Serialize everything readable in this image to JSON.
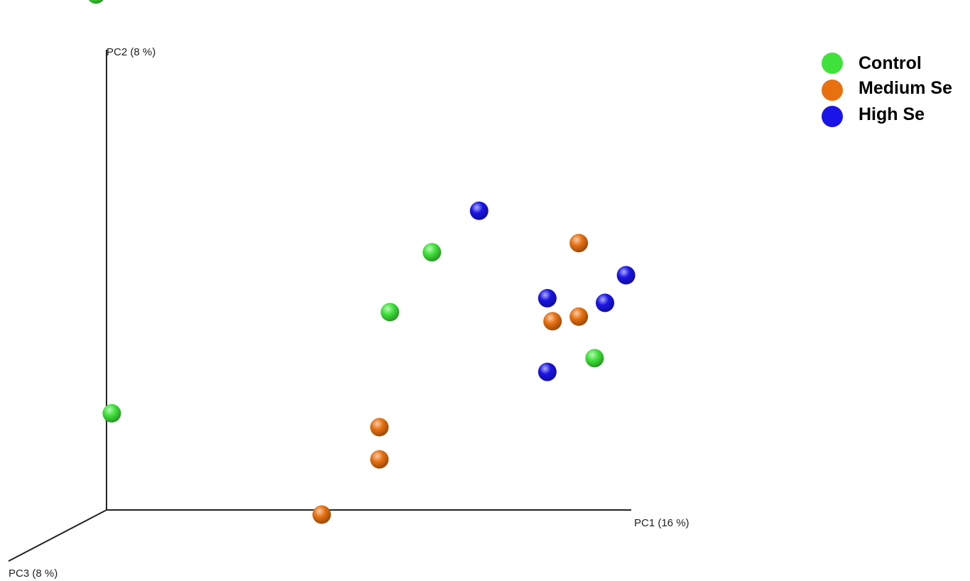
{
  "chart_data": {
    "type": "scatter",
    "projection": "3d",
    "axes": {
      "x": {
        "label": "PC1 (16 %)"
      },
      "y": {
        "label": "PC2 (8 %)"
      },
      "z": {
        "label": "PC3 (8 %)"
      }
    },
    "grid": false,
    "legend": {
      "placement": "top-right"
    },
    "series": [
      {
        "name": "Control",
        "color": "#3fe23a",
        "points": [
          {
            "x": -0.02,
            "y": 1.12
          },
          {
            "x": 0.01,
            "y": 0.21
          },
          {
            "x": 0.54,
            "y": 0.43
          },
          {
            "x": 0.62,
            "y": 0.56
          },
          {
            "x": 0.93,
            "y": 0.33
          }
        ]
      },
      {
        "name": "Medium Se",
        "color": "#e8700f",
        "points": [
          {
            "x": 0.41,
            "y": -0.01
          },
          {
            "x": 0.52,
            "y": 0.11
          },
          {
            "x": 0.52,
            "y": 0.18
          },
          {
            "x": 0.85,
            "y": 0.41
          },
          {
            "x": 0.9,
            "y": 0.42
          },
          {
            "x": 0.9,
            "y": 0.58
          }
        ]
      },
      {
        "name": "High Se",
        "color": "#1a14e6",
        "points": [
          {
            "x": 0.71,
            "y": 0.65
          },
          {
            "x": 0.84,
            "y": 0.46
          },
          {
            "x": 0.84,
            "y": 0.3
          },
          {
            "x": 0.95,
            "y": 0.45
          },
          {
            "x": 0.99,
            "y": 0.51
          }
        ]
      }
    ]
  }
}
